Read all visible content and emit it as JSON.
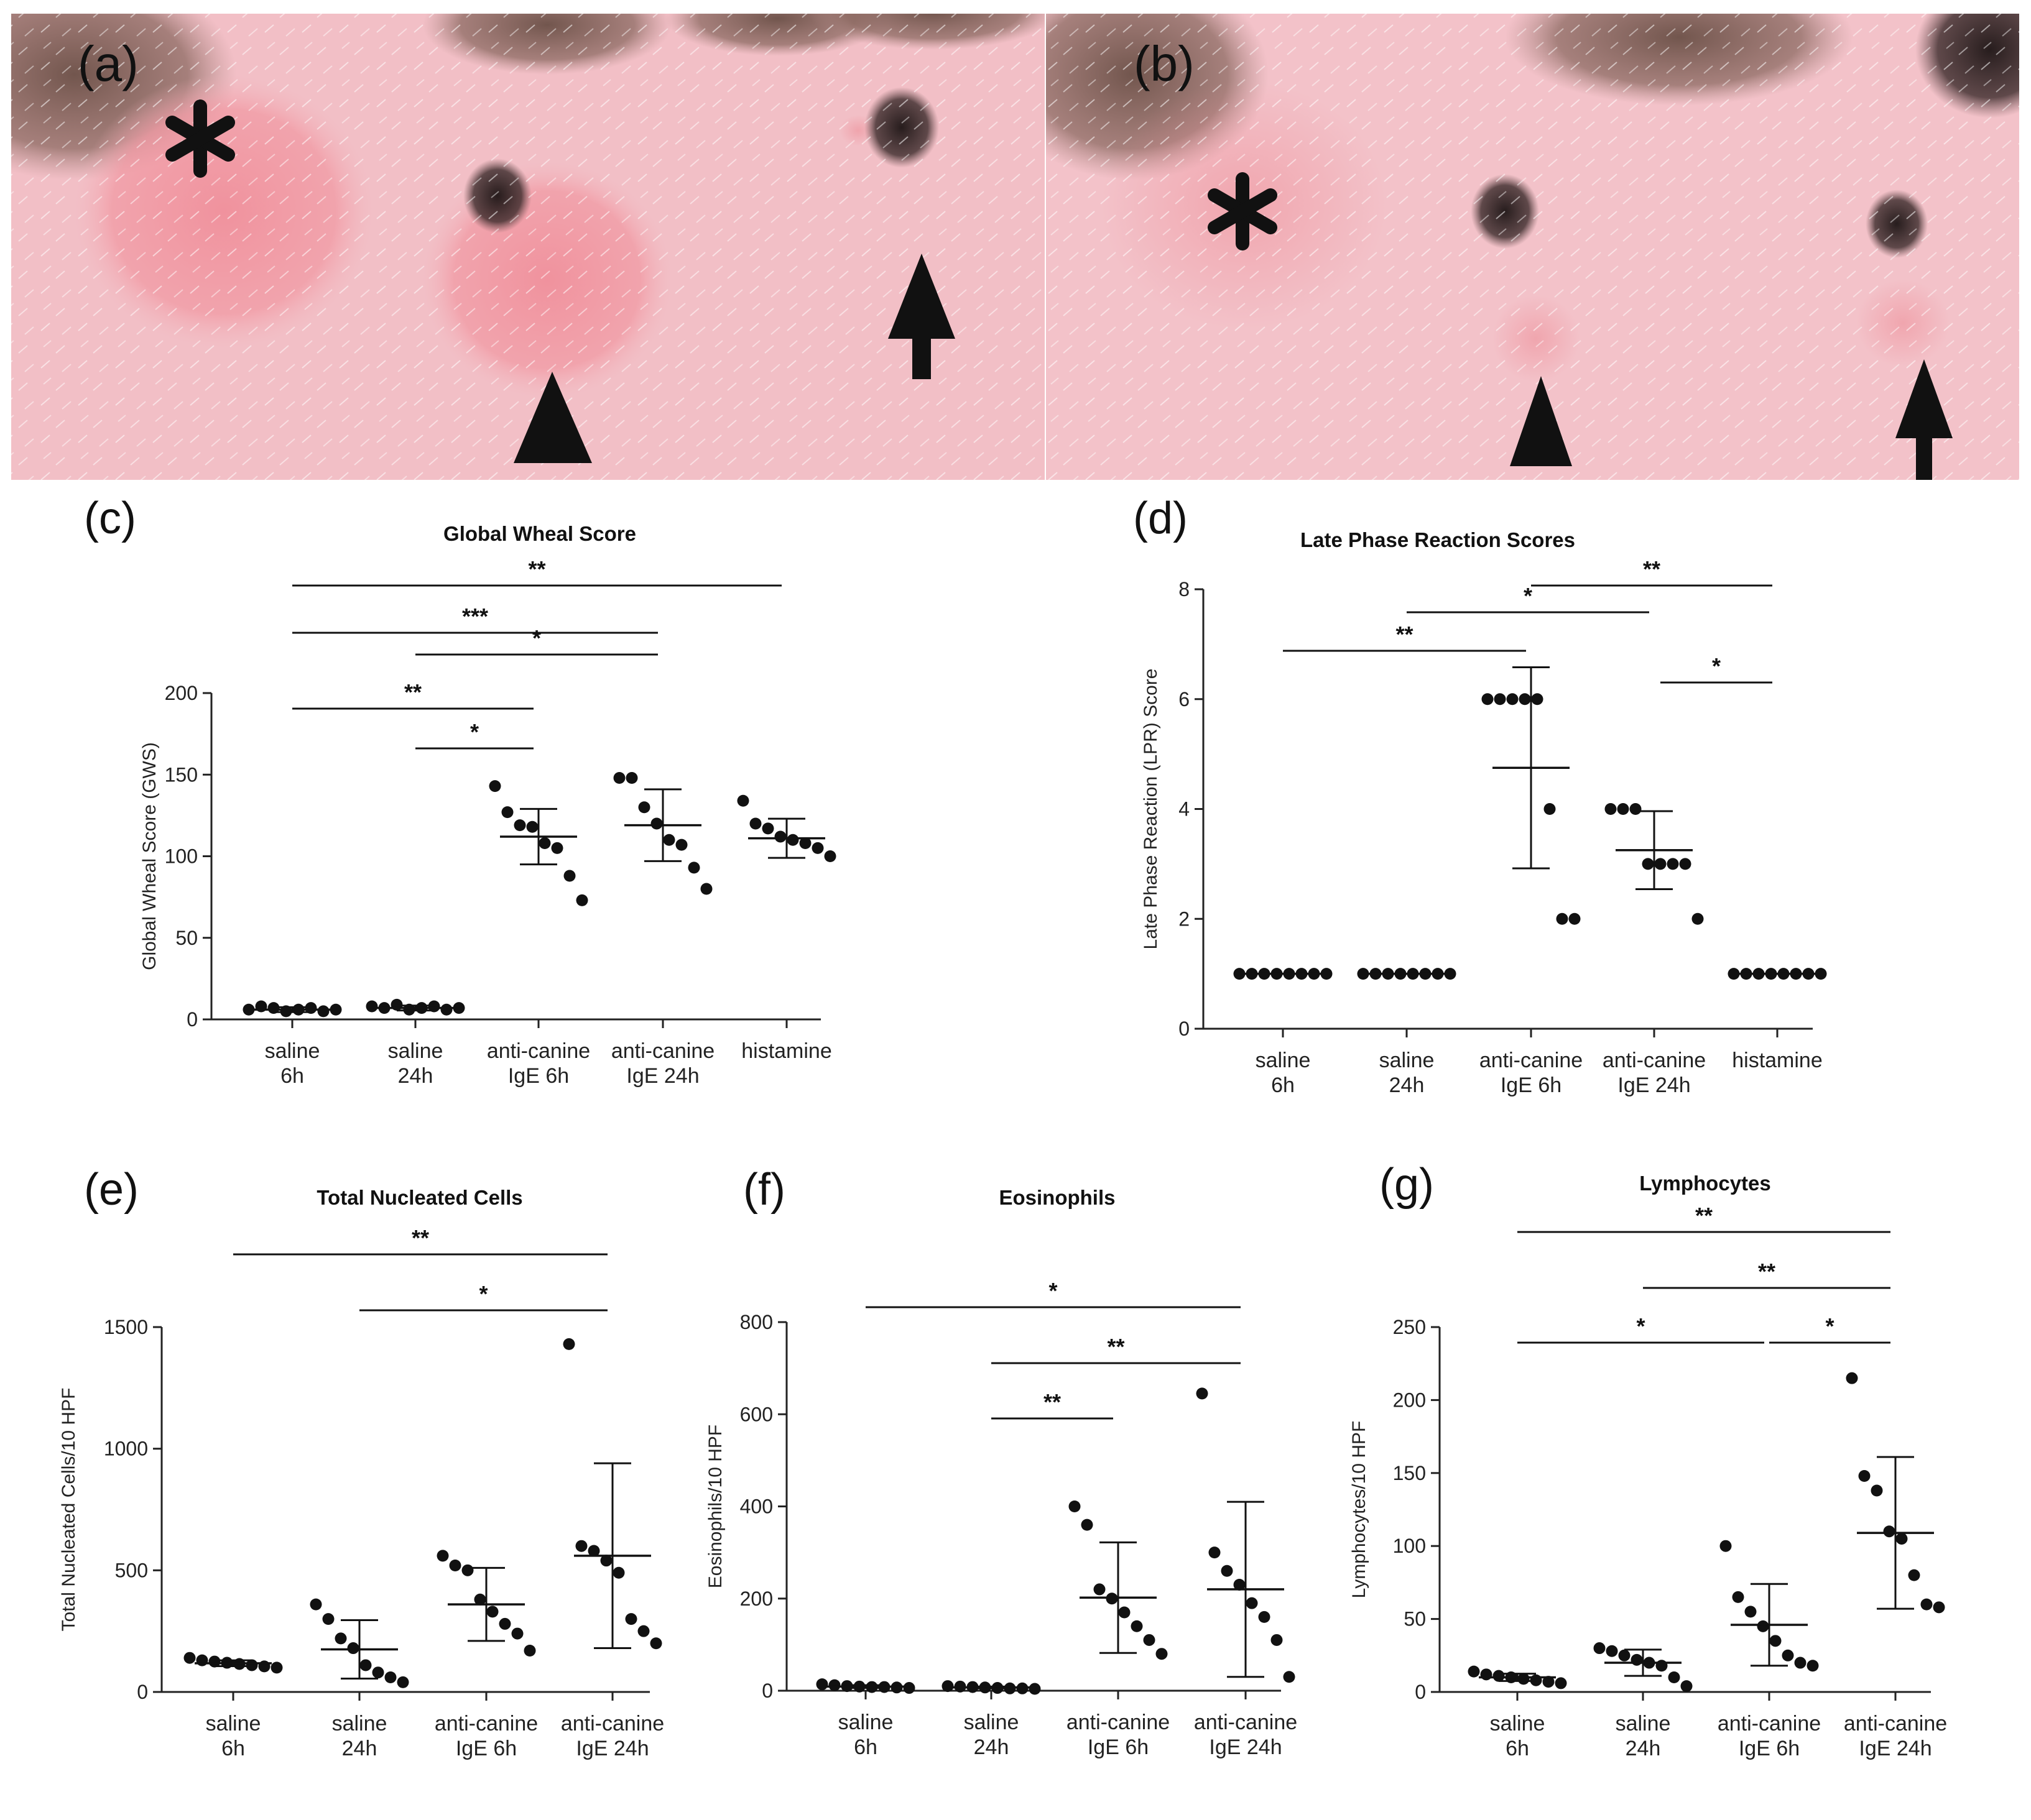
{
  "photos": [
    {
      "label": "(a)",
      "markers": [
        "asterisk",
        "arrowhead",
        "arrow"
      ]
    },
    {
      "label": "(b)",
      "markers": [
        "asterisk",
        "arrowhead",
        "arrow"
      ]
    }
  ],
  "colors": {
    "skin": "#f2bfc6",
    "wheal": "#ee8e98",
    "ink": "#111111"
  },
  "chart_data": [
    {
      "panel": "(c)",
      "type": "scatter",
      "title": "Global Wheal Score",
      "ylabel": "Global Wheal Score (GWS)",
      "ylim": [
        0,
        200
      ],
      "yticks": [
        0,
        50,
        100,
        150,
        200
      ],
      "categories": [
        [
          "saline",
          "6h"
        ],
        [
          "saline",
          "24h"
        ],
        [
          "anti-canine",
          "IgE 6h"
        ],
        [
          "anti-canine",
          "IgE 24h"
        ],
        [
          "histamine"
        ]
      ],
      "points": [
        [
          6,
          8,
          7,
          5,
          6,
          7,
          5,
          6
        ],
        [
          8,
          7,
          9,
          6,
          7,
          8,
          6,
          7
        ],
        [
          143,
          127,
          119,
          118,
          108,
          105,
          88,
          73
        ],
        [
          148,
          148,
          130,
          120,
          110,
          107,
          93,
          80
        ],
        [
          134,
          120,
          117,
          112,
          110,
          108,
          105,
          100
        ]
      ],
      "mean": [
        6,
        7,
        112,
        119,
        111
      ],
      "sd": [
        1.5,
        1.5,
        17,
        22,
        12
      ],
      "sig": [
        {
          "from": 0,
          "to": 4,
          "label": "**"
        },
        {
          "from": 0,
          "to": 3,
          "label": "***"
        },
        {
          "from": 1,
          "to": 3,
          "label": "*"
        },
        {
          "from": 0,
          "to": 2,
          "label": "**"
        },
        {
          "from": 1,
          "to": 2,
          "label": "*"
        }
      ]
    },
    {
      "panel": "(d)",
      "type": "scatter",
      "title": "Late Phase Reaction Scores",
      "ylabel": "Late Phase Reaction (LPR) Score",
      "ylim": [
        0,
        8
      ],
      "yticks": [
        0,
        2,
        4,
        6,
        8
      ],
      "categories": [
        [
          "saline",
          "6h"
        ],
        [
          "saline",
          "24h"
        ],
        [
          "anti-canine",
          "IgE 6h"
        ],
        [
          "anti-canine",
          "IgE 24h"
        ],
        [
          "histamine"
        ]
      ],
      "points": [
        [
          1,
          1,
          1,
          1,
          1,
          1,
          1,
          1
        ],
        [
          1,
          1,
          1,
          1,
          1,
          1,
          1,
          1
        ],
        [
          6,
          6,
          6,
          6,
          6,
          4,
          2,
          2
        ],
        [
          4,
          4,
          4,
          3,
          3,
          3,
          3,
          2
        ],
        [
          1,
          1,
          1,
          1,
          1,
          1,
          1,
          1
        ]
      ],
      "mean": [
        1,
        1,
        4.75,
        3.25,
        1
      ],
      "sd": [
        0,
        0,
        1.83,
        0.71,
        0
      ],
      "sig": [
        {
          "from": 2,
          "to": 4,
          "label": "**"
        },
        {
          "from": 1,
          "to": 3,
          "label": "*"
        },
        {
          "from": 0,
          "to": 2,
          "label": "**"
        },
        {
          "from": 3,
          "to": 4,
          "label": "*"
        }
      ]
    },
    {
      "panel": "(e)",
      "type": "scatter",
      "title": "Total Nucleated Cells",
      "ylabel": "Total Nucleated Cells/10 HPF",
      "ylim": [
        0,
        1500
      ],
      "yticks": [
        0,
        500,
        1000,
        1500
      ],
      "categories": [
        [
          "saline",
          "6h"
        ],
        [
          "saline",
          "24h"
        ],
        [
          "anti-canine",
          "IgE 6h"
        ],
        [
          "anti-canine",
          "IgE 24h"
        ]
      ],
      "points": [
        [
          140,
          130,
          125,
          120,
          115,
          110,
          105,
          100
        ],
        [
          360,
          300,
          220,
          180,
          110,
          80,
          60,
          40
        ],
        [
          560,
          520,
          500,
          380,
          330,
          280,
          240,
          170
        ],
        [
          1430,
          600,
          580,
          540,
          490,
          300,
          250,
          200
        ]
      ],
      "mean": [
        118,
        175,
        360,
        560
      ],
      "sd": [
        12,
        120,
        150,
        380
      ],
      "sig": [
        {
          "from": 0,
          "to": 3,
          "label": "**"
        },
        {
          "from": 1,
          "to": 3,
          "label": "*"
        }
      ]
    },
    {
      "panel": "(f)",
      "type": "scatter",
      "title": "Eosinophils",
      "ylabel": "Eosinophils/10 HPF",
      "ylim": [
        0,
        800
      ],
      "yticks": [
        0,
        200,
        400,
        600,
        800
      ],
      "categories": [
        [
          "saline",
          "6h"
        ],
        [
          "saline",
          "24h"
        ],
        [
          "anti-canine",
          "IgE 6h"
        ],
        [
          "anti-canine",
          "IgE 24h"
        ]
      ],
      "points": [
        [
          14,
          12,
          10,
          9,
          8,
          8,
          7,
          6
        ],
        [
          10,
          9,
          8,
          7,
          6,
          5,
          5,
          4
        ],
        [
          400,
          360,
          220,
          200,
          170,
          140,
          110,
          80
        ],
        [
          645,
          300,
          260,
          230,
          190,
          160,
          110,
          30
        ]
      ],
      "mean": [
        9,
        7,
        202,
        220
      ],
      "sd": [
        3,
        2,
        120,
        190
      ],
      "sig": [
        {
          "from": 0,
          "to": 3,
          "label": "*"
        },
        {
          "from": 1,
          "to": 3,
          "label": "**"
        },
        {
          "from": 1,
          "to": 2,
          "label": "**"
        }
      ]
    },
    {
      "panel": "(g)",
      "type": "scatter",
      "title": "Lymphocytes",
      "ylabel": "Lymphocytes/10 HPF",
      "ylim": [
        0,
        250
      ],
      "yticks": [
        0,
        50,
        100,
        150,
        200,
        250
      ],
      "categories": [
        [
          "saline",
          "6h"
        ],
        [
          "saline",
          "24h"
        ],
        [
          "anti-canine",
          "IgE 6h"
        ],
        [
          "anti-canine",
          "IgE 24h"
        ]
      ],
      "points": [
        [
          14,
          12,
          11,
          10,
          9,
          8,
          7,
          6
        ],
        [
          30,
          28,
          25,
          22,
          20,
          18,
          10,
          4
        ],
        [
          100,
          65,
          55,
          45,
          35,
          25,
          20,
          18
        ],
        [
          215,
          148,
          138,
          110,
          105,
          80,
          60,
          58
        ]
      ],
      "mean": [
        10,
        20,
        46,
        109
      ],
      "sd": [
        2.5,
        9,
        28,
        52
      ],
      "sig": [
        {
          "from": 0,
          "to": 3,
          "label": "**"
        },
        {
          "from": 1,
          "to": 3,
          "label": "**"
        },
        {
          "from": 0,
          "to": 2,
          "label": "*"
        },
        {
          "from": 2,
          "to": 3,
          "label": "*"
        }
      ]
    }
  ]
}
